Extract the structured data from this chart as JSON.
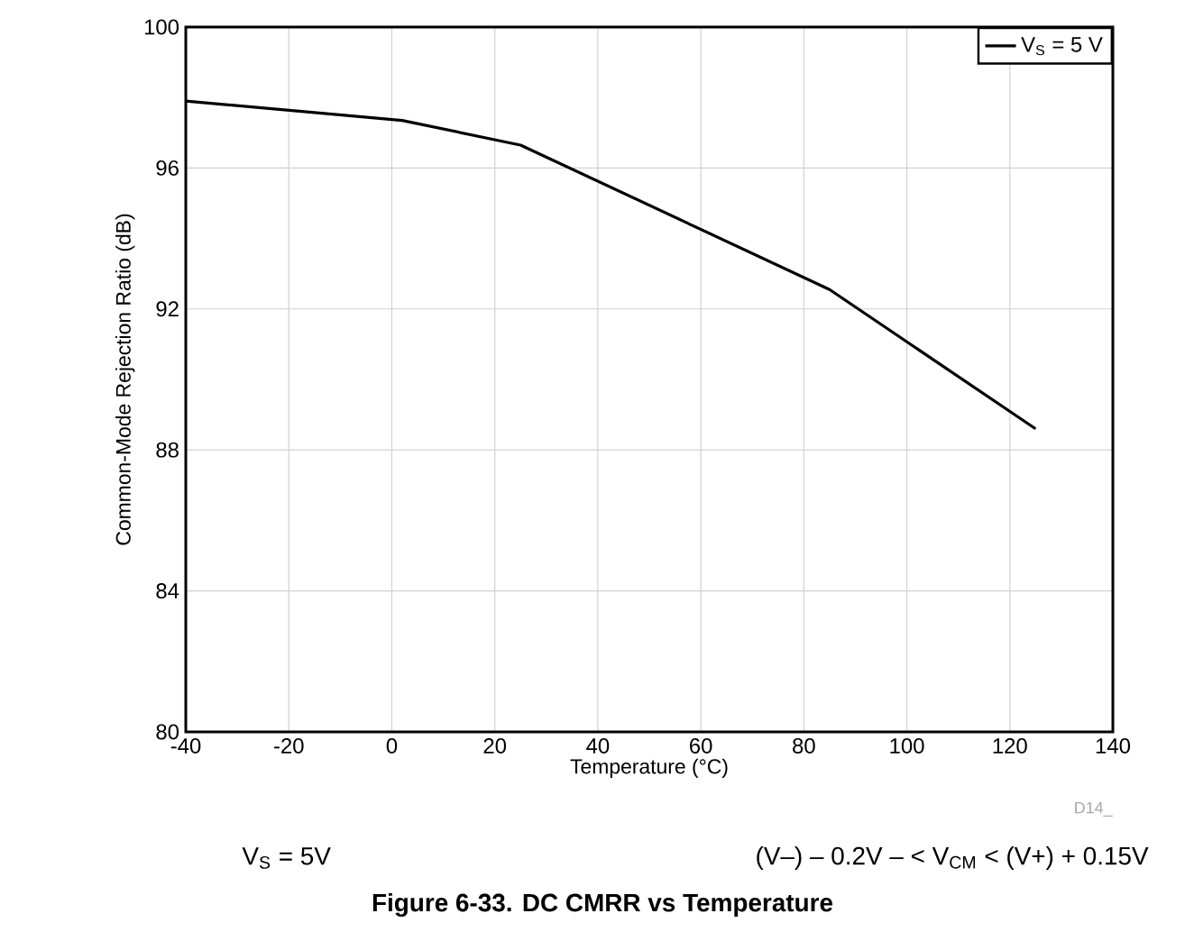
{
  "chart_data": {
    "type": "line",
    "title": "Figure 6-33. DC CMRR vs Temperature",
    "xlabel": "Temperature (°C)",
    "ylabel": "Common-Mode Rejection Ratio (dB)",
    "x": [
      -40,
      2,
      25,
      85,
      125
    ],
    "series": [
      {
        "name": "V$_{S}$ = 5 V",
        "color": "#000000",
        "values": [
          97.9,
          97.35,
          96.65,
          92.55,
          88.6
        ]
      }
    ],
    "xlim": [
      -40,
      140
    ],
    "xticks": [
      -40,
      -20,
      0,
      20,
      40,
      60,
      80,
      100,
      120,
      140
    ],
    "ylim": [
      80,
      100
    ],
    "yticks": [
      80,
      84,
      88,
      92,
      96,
      100
    ],
    "grid": true,
    "legend": "top right",
    "marker": "none",
    "line_style": "solid",
    "annotations": [
      "D14_",
      "V$_{S}$ = 5V",
      "(V–) – 0.2V – < V$_{CM}$ < (V+) + 0.15V"
    ]
  }
}
